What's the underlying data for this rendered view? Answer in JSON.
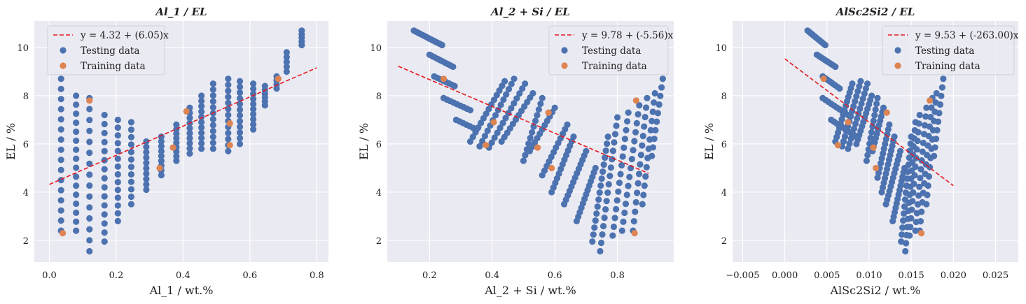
{
  "chart_data": [
    {
      "type": "scatter",
      "title": "Al_1 / EL",
      "xlabel": "Al_1 / wt.%",
      "ylabel": "EL / %",
      "xlim": [
        -0.045,
        0.835
      ],
      "ylim": [
        1.1,
        11.1
      ],
      "xticks": [
        0.0,
        0.2,
        0.4,
        0.6,
        0.8
      ],
      "xtick_labels": [
        "0.0",
        "0.2",
        "0.4",
        "0.6",
        "0.8"
      ],
      "yticks": [
        2,
        4,
        6,
        8,
        10
      ],
      "ytick_labels": [
        "2",
        "4",
        "6",
        "8",
        "10"
      ],
      "grid": true,
      "legend_position": "top-left",
      "fit_line": {
        "label": "y = 4.32 + (6.05)x",
        "intercept": 4.32,
        "slope": 6.05,
        "x_range": [
          0.0,
          0.8
        ],
        "color": "#e6191f"
      },
      "series": [
        {
          "name": "Testing data",
          "color": "#4c72b0",
          "pattern": "columns",
          "columns": [
            {
              "x": 0.035,
              "y_top": 8.7,
              "y_bottom": 2.4,
              "n": 16
            },
            {
              "x": 0.08,
              "y_top": 8.0,
              "y_bottom": 2.4,
              "n": 16
            },
            {
              "x": 0.12,
              "y_top": 7.9,
              "y_bottom": 1.55,
              "n": 15
            },
            {
              "x": 0.165,
              "y_top": 7.2,
              "y_bottom": 1.95,
              "n": 15
            },
            {
              "x": 0.205,
              "y_top": 7.0,
              "y_bottom": 2.8,
              "n": 14
            },
            {
              "x": 0.245,
              "y_top": 6.9,
              "y_bottom": 3.5,
              "n": 12
            },
            {
              "x": 0.29,
              "y_top": 6.1,
              "y_bottom": 4.1,
              "n": 10
            },
            {
              "x": 0.335,
              "y_top": 6.3,
              "y_bottom": 4.7,
              "n": 9
            },
            {
              "x": 0.38,
              "y_top": 6.8,
              "y_bottom": 5.3,
              "n": 9
            },
            {
              "x": 0.42,
              "y_top": 7.5,
              "y_bottom": 5.6,
              "n": 10
            },
            {
              "x": 0.455,
              "y_top": 8.0,
              "y_bottom": 5.8,
              "n": 11
            },
            {
              "x": 0.49,
              "y_top": 8.5,
              "y_bottom": 5.8,
              "n": 12
            },
            {
              "x": 0.535,
              "y_top": 8.7,
              "y_bottom": 5.7,
              "n": 13
            },
            {
              "x": 0.57,
              "y_top": 8.6,
              "y_bottom": 6.0,
              "n": 12
            },
            {
              "x": 0.61,
              "y_top": 8.5,
              "y_bottom": 6.6,
              "n": 10
            },
            {
              "x": 0.645,
              "y_top": 8.4,
              "y_bottom": 7.6,
              "n": 6
            },
            {
              "x": 0.68,
              "y_top": 8.8,
              "y_bottom": 8.3,
              "n": 4
            },
            {
              "x": 0.71,
              "y_top": 9.8,
              "y_bottom": 9.0,
              "n": 5
            },
            {
              "x": 0.755,
              "y_top": 10.7,
              "y_bottom": 10.1,
              "n": 5
            }
          ]
        },
        {
          "name": "Training data",
          "color": "#dd8452",
          "points": [
            [
              0.04,
              2.3
            ],
            [
              0.12,
              7.8
            ],
            [
              0.33,
              5.0
            ],
            [
              0.37,
              5.85
            ],
            [
              0.41,
              7.35
            ],
            [
              0.54,
              6.85
            ],
            [
              0.54,
              5.95
            ],
            [
              0.685,
              8.7
            ]
          ]
        }
      ]
    },
    {
      "type": "scatter",
      "title": "Al_2 + Si / EL",
      "xlabel": "Al_2 + Si / wt.%",
      "ylabel": "EL / %",
      "xlim": [
        0.065,
        0.98
      ],
      "ylim": [
        1.1,
        11.1
      ],
      "xticks": [
        0.2,
        0.4,
        0.6,
        0.8
      ],
      "xtick_labels": [
        "0.2",
        "0.4",
        "0.6",
        "0.8"
      ],
      "yticks": [
        2,
        4,
        6,
        8,
        10
      ],
      "ytick_labels": [
        "2",
        "4",
        "6",
        "8",
        "10"
      ],
      "grid": true,
      "legend_position": "top-right",
      "fit_line": {
        "label": "y = 9.78 + (-5.56)x",
        "intercept": 9.78,
        "slope": -5.56,
        "x_range": [
          0.1,
          0.9
        ],
        "color": "#e6191f"
      },
      "series": [
        {
          "name": "Testing data",
          "color": "#4c72b0",
          "pattern": "diagonals",
          "diagonals": [
            {
              "start": [
                0.15,
                10.7
              ],
              "end": [
                0.24,
                10.1
              ],
              "n": 14
            },
            {
              "start": [
                0.2,
                9.7
              ],
              "end": [
                0.275,
                9.2
              ],
              "n": 10
            },
            {
              "start": [
                0.215,
                8.8
              ],
              "end": [
                0.28,
                8.4
              ],
              "n": 8
            },
            {
              "start": [
                0.245,
                7.9
              ],
              "end": [
                0.33,
                7.4
              ],
              "n": 9
            },
            {
              "start": [
                0.285,
                7.0
              ],
              "end": [
                0.35,
                6.6
              ],
              "n": 7
            },
            {
              "start": [
                0.33,
                6.1
              ],
              "end": [
                0.44,
                8.6
              ],
              "n": 14
            },
            {
              "start": [
                0.36,
                5.9
              ],
              "end": [
                0.47,
                8.7
              ],
              "n": 14
            },
            {
              "start": [
                0.39,
                5.85
              ],
              "end": [
                0.505,
                8.5
              ],
              "n": 14
            },
            {
              "start": [
                0.43,
                6.1
              ],
              "end": [
                0.53,
                8.1
              ],
              "n": 12
            },
            {
              "start": [
                0.5,
                5.3
              ],
              "end": [
                0.56,
                7.9
              ],
              "n": 12
            },
            {
              "start": [
                0.52,
                5.7
              ],
              "end": [
                0.6,
                7.5
              ],
              "n": 11
            },
            {
              "start": [
                0.56,
                4.7
              ],
              "end": [
                0.64,
                6.8
              ],
              "n": 12
            },
            {
              "start": [
                0.59,
                4.0
              ],
              "end": [
                0.66,
                6.3
              ],
              "n": 13
            },
            {
              "start": [
                0.63,
                3.5
              ],
              "end": [
                0.7,
                5.7
              ],
              "n": 13
            },
            {
              "start": [
                0.67,
                2.8
              ],
              "end": [
                0.73,
                5.0
              ],
              "n": 13
            },
            {
              "start": [
                0.72,
                1.95
              ],
              "end": [
                0.77,
                6.3
              ],
              "n": 16
            },
            {
              "start": [
                0.745,
                1.55
              ],
              "end": [
                0.8,
                7.1
              ],
              "n": 17
            },
            {
              "start": [
                0.785,
                2.2
              ],
              "end": [
                0.835,
                7.3
              ],
              "n": 15
            },
            {
              "start": [
                0.815,
                2.4
              ],
              "end": [
                0.87,
                7.6
              ],
              "n": 15
            },
            {
              "start": [
                0.85,
                2.4
              ],
              "end": [
                0.895,
                7.9
              ],
              "n": 15
            },
            {
              "start": [
                0.88,
                3.5
              ],
              "end": [
                0.92,
                8.1
              ],
              "n": 13
            },
            {
              "start": [
                0.91,
                5.5
              ],
              "end": [
                0.945,
                8.7
              ],
              "n": 10
            }
          ]
        },
        {
          "name": "Training data",
          "color": "#dd8452",
          "points": [
            [
              0.245,
              8.7
            ],
            [
              0.38,
              5.95
            ],
            [
              0.405,
              6.9
            ],
            [
              0.545,
              5.85
            ],
            [
              0.58,
              7.3
            ],
            [
              0.59,
              5.0
            ],
            [
              0.855,
              2.3
            ],
            [
              0.86,
              7.8
            ]
          ]
        }
      ]
    },
    {
      "type": "scatter",
      "title": "AlSc2Si2 / EL",
      "xlabel": "AlSc2Si2 / wt.%",
      "ylabel": "EL / %",
      "xlim": [
        -0.0062,
        0.0277
      ],
      "ylim": [
        1.1,
        11.1
      ],
      "xticks": [
        -0.005,
        0.0,
        0.005,
        0.01,
        0.015,
        0.02,
        0.025
      ],
      "xtick_labels": [
        "−0.005",
        "0.000",
        "0.005",
        "0.010",
        "0.015",
        "0.020",
        "0.025"
      ],
      "yticks": [
        2,
        4,
        6,
        8,
        10
      ],
      "ytick_labels": [
        "2",
        "4",
        "6",
        "8",
        "10"
      ],
      "grid": true,
      "legend_position": "top-right",
      "fit_line": {
        "label": "y = 9.53 + (-263.00)x",
        "intercept": 9.53,
        "slope": -263.0,
        "x_range": [
          0.0,
          0.02
        ],
        "color": "#e6191f"
      },
      "series": [
        {
          "name": "Testing data",
          "color": "#4c72b0",
          "pattern": "diagonals",
          "diagonals": [
            {
              "start": [
                0.0027,
                10.7
              ],
              "end": [
                0.0048,
                10.1
              ],
              "n": 12
            },
            {
              "start": [
                0.0038,
                9.7
              ],
              "end": [
                0.006,
                9.2
              ],
              "n": 10
            },
            {
              "start": [
                0.0045,
                8.8
              ],
              "end": [
                0.0065,
                8.3
              ],
              "n": 8
            },
            {
              "start": [
                0.0045,
                7.9
              ],
              "end": [
                0.0075,
                7.2
              ],
              "n": 10
            },
            {
              "start": [
                0.0055,
                7.0
              ],
              "end": [
                0.0085,
                6.3
              ],
              "n": 10
            },
            {
              "start": [
                0.006,
                6.1
              ],
              "end": [
                0.008,
                8.5
              ],
              "n": 14
            },
            {
              "start": [
                0.0068,
                5.9
              ],
              "end": [
                0.009,
                8.6
              ],
              "n": 14
            },
            {
              "start": [
                0.0075,
                5.8
              ],
              "end": [
                0.0098,
                8.5
              ],
              "n": 14
            },
            {
              "start": [
                0.0085,
                6.0
              ],
              "end": [
                0.0103,
                8.0
              ],
              "n": 12
            },
            {
              "start": [
                0.0097,
                5.3
              ],
              "end": [
                0.011,
                7.9
              ],
              "n": 12
            },
            {
              "start": [
                0.0104,
                5.7
              ],
              "end": [
                0.0117,
                7.5
              ],
              "n": 11
            },
            {
              "start": [
                0.011,
                4.6
              ],
              "end": [
                0.0124,
                6.8
              ],
              "n": 12
            },
            {
              "start": [
                0.0115,
                4.0
              ],
              "end": [
                0.013,
                6.3
              ],
              "n": 13
            },
            {
              "start": [
                0.012,
                3.5
              ],
              "end": [
                0.0137,
                5.7
              ],
              "n": 13
            },
            {
              "start": [
                0.0128,
                2.8
              ],
              "end": [
                0.0142,
                5.0
              ],
              "n": 13
            },
            {
              "start": [
                0.0138,
                1.95
              ],
              "end": [
                0.015,
                6.3
              ],
              "n": 16
            },
            {
              "start": [
                0.0143,
                1.55
              ],
              "end": [
                0.0155,
                6.9
              ],
              "n": 17
            },
            {
              "start": [
                0.0148,
                2.2
              ],
              "end": [
                0.016,
                7.2
              ],
              "n": 15
            },
            {
              "start": [
                0.0155,
                2.4
              ],
              "end": [
                0.0168,
                7.5
              ],
              "n": 15
            },
            {
              "start": [
                0.016,
                2.4
              ],
              "end": [
                0.0175,
                7.9
              ],
              "n": 15
            },
            {
              "start": [
                0.0168,
                3.5
              ],
              "end": [
                0.018,
                8.1
              ],
              "n": 13
            },
            {
              "start": [
                0.0177,
                5.5
              ],
              "end": [
                0.0188,
                8.7
              ],
              "n": 10
            }
          ]
        },
        {
          "name": "Training data",
          "color": "#dd8452",
          "points": [
            [
              0.0046,
              8.7
            ],
            [
              0.0063,
              5.95
            ],
            [
              0.0075,
              6.9
            ],
            [
              0.0105,
              5.85
            ],
            [
              0.0108,
              5.0
            ],
            [
              0.0121,
              7.3
            ],
            [
              0.0162,
              2.3
            ],
            [
              0.0172,
              7.8
            ]
          ]
        }
      ]
    }
  ]
}
